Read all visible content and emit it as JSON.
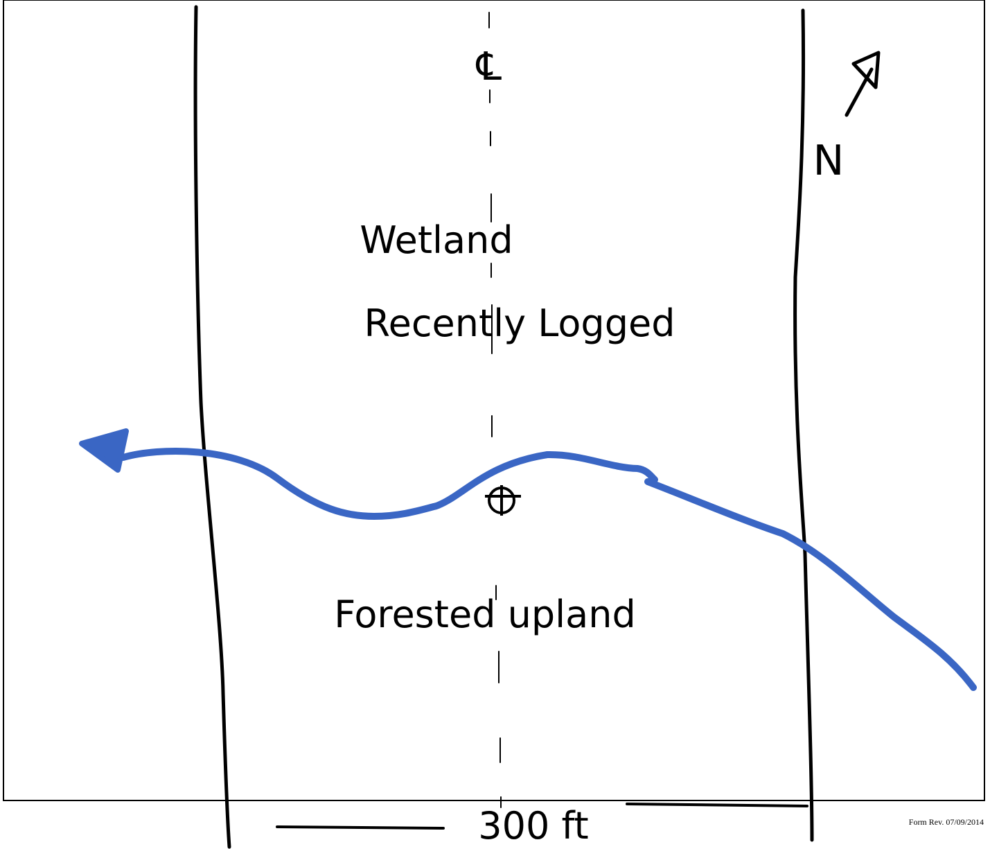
{
  "centerline_symbol": "℄",
  "north_label": "N",
  "labels": [
    "Wetland",
    "Recently Logged",
    "Forested upland"
  ],
  "scale_label": "300 ft",
  "footer": "Form Rev. 07/09/2014"
}
